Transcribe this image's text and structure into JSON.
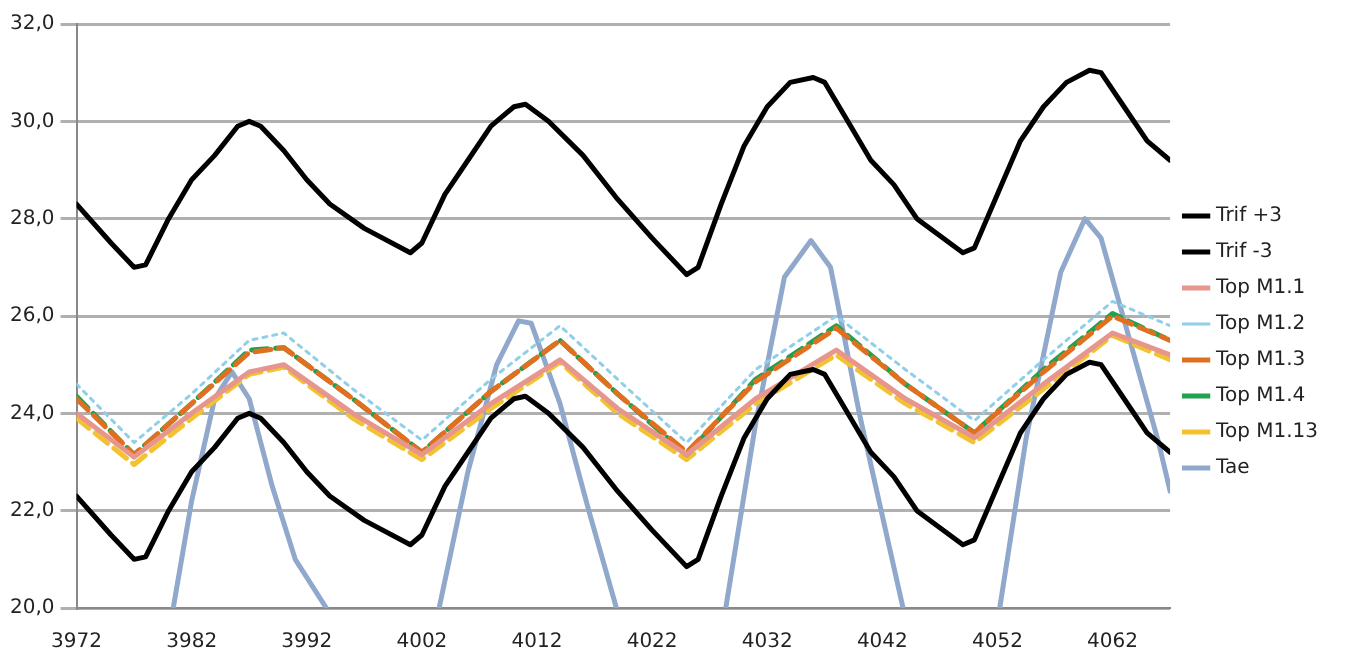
{
  "chart_data": {
    "type": "line",
    "xlim": [
      3972,
      4067
    ],
    "xticks": [
      3972,
      3982,
      3992,
      4002,
      4012,
      4022,
      4032,
      4042,
      4052,
      4062
    ],
    "ylim": [
      20,
      32
    ],
    "yticks": [
      {
        "value": 20,
        "label": "20,0"
      },
      {
        "value": 22,
        "label": "22,0"
      },
      {
        "value": 24,
        "label": "24,0"
      },
      {
        "value": 26,
        "label": "26,0"
      },
      {
        "value": 28,
        "label": "28,0"
      },
      {
        "value": 30,
        "label": "30,0"
      },
      {
        "value": 32,
        "label": "32,0"
      }
    ],
    "grid": "y",
    "legend": "right",
    "marker": "none",
    "series": [
      {
        "name": "Trif +3",
        "color": "#000000",
        "line_style": "solid",
        "x": [
          3972,
          3975,
          3977,
          3978,
          3980,
          3982,
          3984,
          3986,
          3987,
          3988,
          3990,
          3992,
          3994,
          3997,
          4001,
          4002,
          4004,
          4006,
          4008,
          4010,
          4011,
          4013,
          4016,
          4019,
          4022,
          4025,
          4026,
          4028,
          4030,
          4032,
          4034,
          4036,
          4037,
          4039,
          4041,
          4043,
          4045,
          4049,
          4050,
          4052,
          4054,
          4056,
          4058,
          4060,
          4061,
          4063,
          4065,
          4067
        ],
        "values": [
          28.3,
          27.5,
          27.0,
          27.05,
          28.0,
          28.8,
          29.3,
          29.9,
          30.0,
          29.9,
          29.4,
          28.8,
          28.3,
          27.8,
          27.3,
          27.5,
          28.5,
          29.2,
          29.9,
          30.3,
          30.35,
          30.0,
          29.3,
          28.4,
          27.6,
          26.85,
          27.0,
          28.3,
          29.5,
          30.3,
          30.8,
          30.9,
          30.8,
          30.0,
          29.2,
          28.7,
          28.0,
          27.3,
          27.4,
          28.5,
          29.6,
          30.3,
          30.8,
          31.05,
          31.0,
          30.3,
          29.6,
          29.2
        ]
      },
      {
        "name": "Trif -3",
        "color": "#000000",
        "line_style": "solid",
        "x": [
          3972,
          3975,
          3977,
          3978,
          3980,
          3982,
          3984,
          3986,
          3987,
          3988,
          3990,
          3992,
          3994,
          3997,
          4001,
          4002,
          4004,
          4006,
          4008,
          4010,
          4011,
          4013,
          4016,
          4019,
          4022,
          4025,
          4026,
          4028,
          4030,
          4032,
          4034,
          4036,
          4037,
          4039,
          4041,
          4043,
          4045,
          4049,
          4050,
          4052,
          4054,
          4056,
          4058,
          4060,
          4061,
          4063,
          4065,
          4067
        ],
        "values": [
          22.3,
          21.5,
          21.0,
          21.05,
          22.0,
          22.8,
          23.3,
          23.9,
          24.0,
          23.9,
          23.4,
          22.8,
          22.3,
          21.8,
          21.3,
          21.5,
          22.5,
          23.2,
          23.9,
          24.3,
          24.35,
          24.0,
          23.3,
          22.4,
          21.6,
          20.85,
          21.0,
          22.3,
          23.5,
          24.3,
          24.8,
          24.9,
          24.8,
          24.0,
          23.2,
          22.7,
          22.0,
          21.3,
          21.4,
          22.5,
          23.6,
          24.3,
          24.8,
          25.05,
          25.0,
          24.3,
          23.6,
          23.2
        ]
      },
      {
        "name": "Top M1.1",
        "color": "#e6968c",
        "line_style": "solid",
        "x": [
          3972,
          3977,
          3982,
          3987,
          3990,
          3996,
          4002,
          4008,
          4014,
          4019,
          4025,
          4031,
          4038,
          4044,
          4050,
          4056,
          4062,
          4067
        ],
        "values": [
          24.0,
          23.1,
          24.0,
          24.85,
          25.0,
          24.0,
          23.15,
          24.2,
          25.1,
          24.1,
          23.15,
          24.3,
          25.3,
          24.3,
          23.5,
          24.6,
          25.65,
          25.2
        ]
      },
      {
        "name": "Top M1.2",
        "color": "#8fcfe8",
        "line_style": "dotted",
        "x": [
          3972,
          3977,
          3982,
          3987,
          3990,
          3996,
          4002,
          4008,
          4014,
          4019,
          4025,
          4031,
          4038,
          4044,
          4050,
          4056,
          4062,
          4067
        ],
        "values": [
          24.6,
          23.4,
          24.4,
          25.5,
          25.65,
          24.5,
          23.45,
          24.7,
          25.8,
          24.7,
          23.4,
          24.9,
          26.0,
          24.9,
          23.85,
          25.1,
          26.3,
          25.8
        ]
      },
      {
        "name": "Top M1.3",
        "color": "#e07020",
        "line_style": "dashed",
        "x": [
          3972,
          3977,
          3982,
          3987,
          3990,
          3996,
          4002,
          4008,
          4014,
          4019,
          4025,
          4031,
          4038,
          4044,
          4050,
          4056,
          4062,
          4067
        ],
        "values": [
          24.3,
          23.15,
          24.2,
          25.25,
          25.35,
          24.3,
          23.2,
          24.45,
          25.5,
          24.4,
          23.2,
          24.65,
          25.75,
          24.6,
          23.6,
          24.85,
          26.0,
          25.5
        ]
      },
      {
        "name": "Top M1.4",
        "color": "#22a050",
        "line_style": "dashed",
        "x": [
          3972,
          3977,
          3982,
          3987,
          3990,
          3996,
          4002,
          4008,
          4014,
          4019,
          4025,
          4031,
          4038,
          4044,
          4050,
          4056,
          4062,
          4067
        ],
        "values": [
          24.35,
          23.15,
          24.2,
          25.3,
          25.35,
          24.3,
          23.2,
          24.45,
          25.5,
          24.4,
          23.15,
          24.7,
          25.8,
          24.6,
          23.6,
          24.9,
          26.05,
          25.5
        ]
      },
      {
        "name": "Top M1.13",
        "color": "#f2c230",
        "line_style": "dashed",
        "x": [
          3972,
          3977,
          3982,
          3987,
          3990,
          3996,
          4002,
          4008,
          4014,
          4019,
          4025,
          4031,
          4038,
          4044,
          4050,
          4056,
          4062,
          4067
        ],
        "values": [
          23.9,
          22.95,
          23.9,
          24.8,
          24.95,
          23.9,
          23.05,
          24.1,
          25.05,
          24.0,
          23.05,
          24.2,
          25.2,
          24.2,
          23.4,
          24.5,
          25.6,
          25.1
        ]
      },
      {
        "name": "Tae",
        "color": "#8fa8cc",
        "line_style": "solid",
        "x": [
          3980.4,
          3982,
          3984,
          3985.5,
          3987,
          3989,
          3991,
          3993.7,
          3998,
          4003.5,
          4006,
          4008.5,
          4010.4,
          4011.5,
          4014,
          4016.5,
          4018.9,
          4023,
          4028.4,
          4031,
          4033.5,
          4035.8,
          4037.5,
          4040,
          4043.8,
          4048,
          4052.2,
          4054.5,
          4057.5,
          4059.6,
          4061,
          4063.5,
          4066,
          4067
        ],
        "values": [
          20,
          22.2,
          24.3,
          24.85,
          24.3,
          22.5,
          21.0,
          20,
          null,
          20,
          22.8,
          25.0,
          25.9,
          25.85,
          24.2,
          22.0,
          20,
          null,
          20,
          23.8,
          26.8,
          27.55,
          27.0,
          24.0,
          20,
          null,
          20,
          23.5,
          26.9,
          28.0,
          27.6,
          25.5,
          23.4,
          22.4
        ]
      }
    ]
  }
}
